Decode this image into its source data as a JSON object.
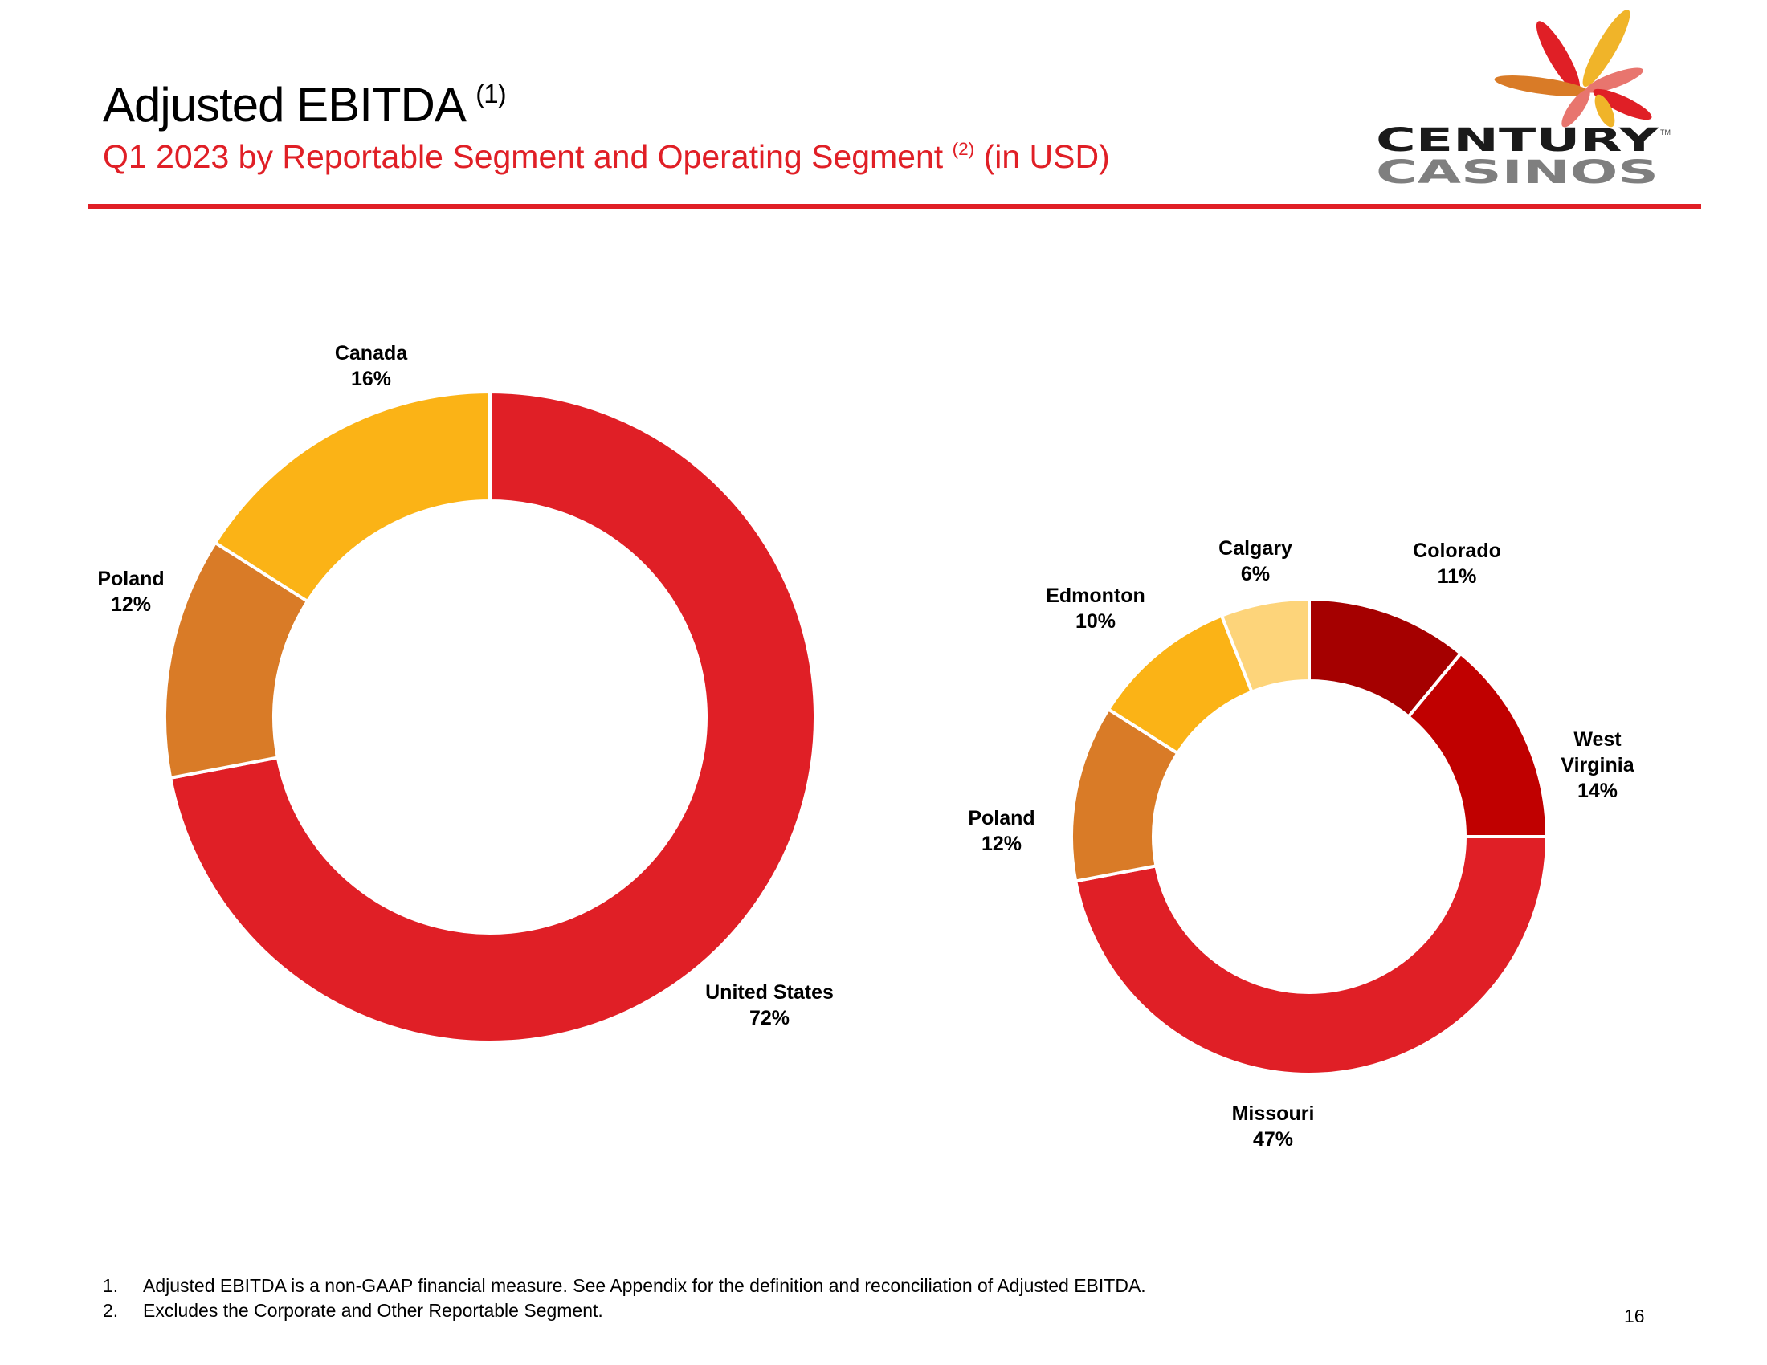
{
  "header": {
    "title": "Adjusted EBITDA",
    "title_note": "(1)",
    "subtitle_pre": "Q1 2023 by Reportable Segment and Operating Segment",
    "subtitle_note": "(2)",
    "subtitle_post": "(in USD)"
  },
  "logo": {
    "line1": "CENTURY",
    "line2": "CASINOS",
    "tm": "TM"
  },
  "colors": {
    "accent": "#E01F26"
  },
  "chart_data": [
    {
      "type": "pie",
      "title": "Reportable Segment",
      "donut": true,
      "categories": [
        "United States",
        "Poland",
        "Canada"
      ],
      "values": [
        72,
        12,
        16
      ],
      "labels": [
        "72%",
        "12%",
        "16%"
      ],
      "colors": [
        "#E01F26",
        "#D97B27",
        "#FBB316"
      ]
    },
    {
      "type": "pie",
      "title": "Operating Segment",
      "donut": true,
      "categories": [
        "Colorado",
        "West Virginia",
        "Missouri",
        "Poland",
        "Edmonton",
        "Calgary"
      ],
      "values": [
        11,
        14,
        47,
        12,
        10,
        6
      ],
      "labels": [
        "11%",
        "14%",
        "47%",
        "12%",
        "10%",
        "6%"
      ],
      "colors": [
        "#A50000",
        "#C00000",
        "#E01F26",
        "#D97B27",
        "#FBB316",
        "#FDD47A"
      ]
    }
  ],
  "footnotes": [
    {
      "num": "1.",
      "text": "Adjusted EBITDA is a non-GAAP financial measure. See Appendix for the definition and reconciliation of Adjusted EBITDA."
    },
    {
      "num": "2.",
      "text": "Excludes the Corporate and Other Reportable Segment."
    }
  ],
  "page_number": "16"
}
